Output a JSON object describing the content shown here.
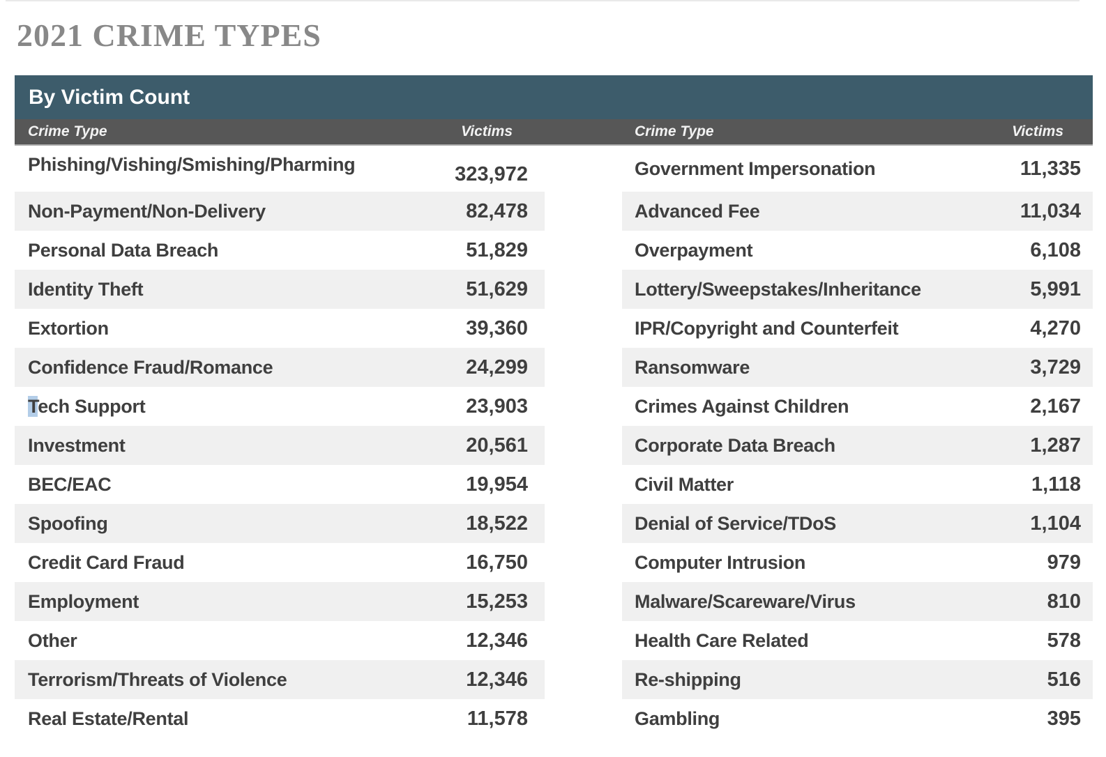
{
  "title": "2021 CRIME TYPES",
  "table": {
    "section_header": "By Victim Count",
    "column_headers": {
      "crime_type": "Crime Type",
      "victims": "Victims"
    },
    "left_rows": [
      {
        "label": "Phishing/Vishing/Smishing/Pharming",
        "victims": "323,972"
      },
      {
        "label": "Non-Payment/Non-Delivery",
        "victims": "82,478"
      },
      {
        "label": "Personal Data Breach",
        "victims": "51,829"
      },
      {
        "label": "Identity Theft",
        "victims": "51,629"
      },
      {
        "label": "Extortion",
        "victims": "39,360"
      },
      {
        "label": "Confidence Fraud/Romance",
        "victims": "24,299"
      },
      {
        "selected_prefix": "T",
        "label_rest": "ech Support",
        "victims": "23,903"
      },
      {
        "label": "Investment",
        "victims": "20,561"
      },
      {
        "label": "BEC/EAC",
        "victims": "19,954"
      },
      {
        "label": "Spoofing",
        "victims": "18,522"
      },
      {
        "label": "Credit Card Fraud",
        "victims": "16,750"
      },
      {
        "label": "Employment",
        "victims": "15,253"
      },
      {
        "label": "Other",
        "victims": "12,346"
      },
      {
        "label": "Terrorism/Threats of Violence",
        "victims": "12,346"
      },
      {
        "label": "Real Estate/Rental",
        "victims": "11,578"
      }
    ],
    "right_rows": [
      {
        "label": "Government Impersonation",
        "victims": "11,335"
      },
      {
        "label": "Advanced Fee",
        "victims": "11,034"
      },
      {
        "label": "Overpayment",
        "victims": "6,108"
      },
      {
        "label": "Lottery/Sweepstakes/Inheritance",
        "victims": "5,991"
      },
      {
        "label": "IPR/Copyright and Counterfeit",
        "victims": "4,270"
      },
      {
        "label": "Ransomware",
        "victims": "3,729"
      },
      {
        "label": "Crimes Against Children",
        "victims": "2,167"
      },
      {
        "label": "Corporate Data Breach",
        "victims": "1,287"
      },
      {
        "label": "Civil Matter",
        "victims": "1,118"
      },
      {
        "label": "Denial of Service/TDoS",
        "victims": "1,104"
      },
      {
        "label": "Computer Intrusion",
        "victims": "979"
      },
      {
        "label": "Malware/Scareware/Virus",
        "victims": "810"
      },
      {
        "label": "Health Care Related",
        "victims": "578"
      },
      {
        "label": "Re-shipping",
        "victims": "516"
      },
      {
        "label": "Gambling",
        "victims": "395"
      }
    ]
  },
  "colors": {
    "section_header_bg": "#3D5C6B",
    "column_header_bg": "#575757",
    "row_stripe": "#F0F0F0",
    "title_text": "#888888",
    "body_text": "#3F3F3F",
    "selection_highlight": "#B3CDE8",
    "header_text": "#FFFFFF",
    "column_header_text": "#F2F2F2"
  }
}
